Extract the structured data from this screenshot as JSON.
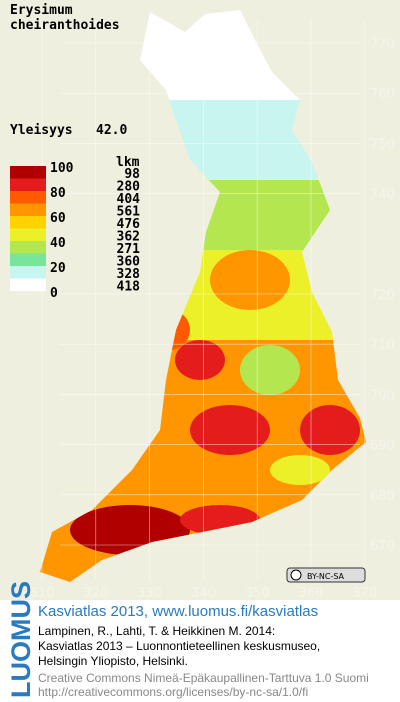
{
  "title": [
    "Erysimum",
    "cheiranthoides"
  ],
  "frequency": {
    "label": "Yleisyys",
    "value": "42.0"
  },
  "legend": {
    "scale_labels": [
      100,
      80,
      60,
      40,
      20,
      0
    ],
    "count_header": "lkm",
    "counts": [
      98,
      280,
      404,
      561,
      476,
      362,
      271,
      360,
      328,
      418
    ],
    "colors": [
      "#b00000",
      "#e41c1c",
      "#ff5a00",
      "#ff9600",
      "#ffd200",
      "#ecf028",
      "#b4e650",
      "#78e69a",
      "#c8f5f0",
      "#ffffff"
    ]
  },
  "y_labels": [
    770,
    760,
    750,
    740,
    720,
    710,
    700,
    690,
    680,
    670
  ],
  "x_labels": [
    310,
    320,
    330,
    340,
    350,
    360,
    370
  ],
  "license_badge": "BY-NC-SA",
  "logo": "LUOMUS",
  "footer": {
    "heading": "Kasviatlas 2013, www.luomus.fi/kasviatlas",
    "citation": [
      "Lampinen, R., Lahti, T. & Heikkinen M. 2014:",
      "Kasviatlas 2013 – Luonnontieteellinen keskusmuseo,",
      "Helsingin Yliopisto, Helsinki."
    ],
    "license": [
      "Creative Commons Nimeä-Epäkaupallinen-Tarttuva 1.0 Suomi",
      "http://creativecommons.org/licenses/by-nc-sa/1.0/fi"
    ]
  }
}
